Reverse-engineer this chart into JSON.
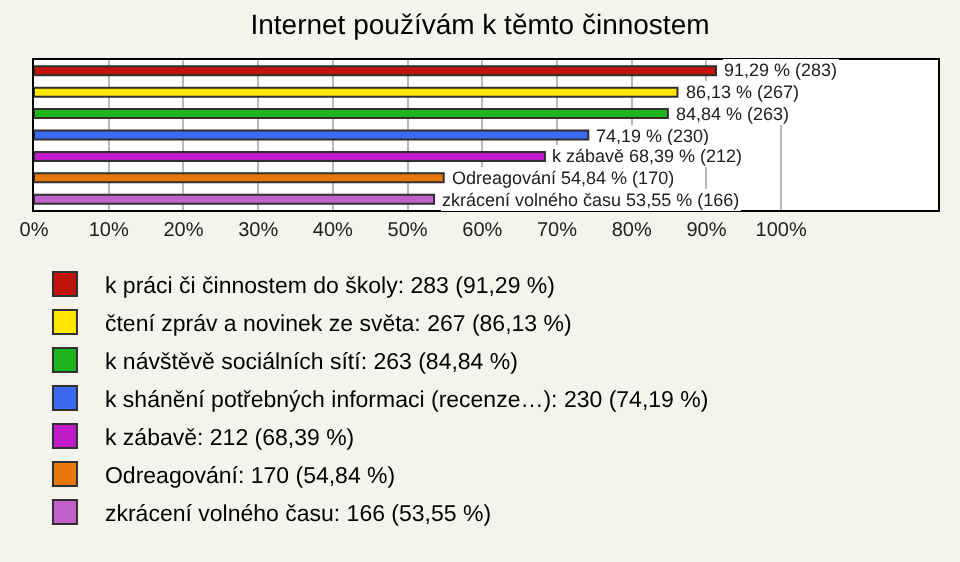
{
  "chart_data": {
    "type": "bar",
    "orientation": "horizontal",
    "title": "Internet používám k těmto činnostem",
    "categories": [
      null,
      null,
      null,
      null,
      null,
      null,
      null
    ],
    "series": [
      {
        "name": "k práci či činnostem do školy: 283 (91,29 %)",
        "color": "#c0140c",
        "values": [
          91.29,
          null,
          null,
          null,
          null,
          null,
          null
        ],
        "value_labels": [
          "91,29 % (283)",
          null,
          null,
          null,
          null,
          null,
          null
        ]
      },
      {
        "name": "čtení zpráv a novinek ze světa: 267 (86,13 %)",
        "color": "#ffe600",
        "values": [
          null,
          86.13,
          null,
          null,
          null,
          null,
          null
        ],
        "value_labels": [
          null,
          "86,13 % (267)",
          null,
          null,
          null,
          null,
          null
        ]
      },
      {
        "name": "k návštěvě sociálních sítí: 263 (84,84 %)",
        "color": "#1cb51c",
        "values": [
          null,
          null,
          84.84,
          null,
          null,
          null,
          null
        ],
        "value_labels": [
          null,
          null,
          "84,84 % (263)",
          null,
          null,
          null,
          null
        ]
      },
      {
        "name": "k shánění potřebných informaci (recenze…): 230 (74,19 %)",
        "color": "#3a6af0",
        "values": [
          null,
          null,
          null,
          74.19,
          null,
          null,
          null
        ],
        "value_labels": [
          null,
          null,
          null,
          "74,19 % (230)",
          null,
          null,
          null
        ]
      },
      {
        "name": "k zábavě: 212 (68,39 %)",
        "color": "#c01cc9",
        "values": [
          null,
          null,
          null,
          null,
          68.39,
          null,
          null
        ],
        "value_labels": [
          null,
          null,
          null,
          null,
          "k zábavě 68,39 % (212)",
          null,
          null
        ]
      },
      {
        "name": "Odreagování: 170 (54,84 %)",
        "color": "#e8780c",
        "values": [
          null,
          null,
          null,
          null,
          null,
          54.84,
          null
        ],
        "value_labels": [
          null,
          null,
          null,
          null,
          null,
          "Odreagování 54,84 % (170)",
          null
        ]
      },
      {
        "name": "zkrácení volného času: 166 (53,55 %)",
        "color": "#c060c8",
        "values": [
          null,
          null,
          null,
          null,
          null,
          null,
          53.55
        ],
        "value_labels": [
          null,
          null,
          null,
          null,
          null,
          null,
          "zkrácení volného času 53,55 % (166)"
        ]
      }
    ],
    "xlim": [
      0,
      121
    ],
    "xticks": [
      {
        "value": 0,
        "label": "0%"
      },
      {
        "value": 10,
        "label": "10%"
      },
      {
        "value": 20,
        "label": "20%"
      },
      {
        "value": 30,
        "label": "30%"
      },
      {
        "value": 40,
        "label": "40%"
      },
      {
        "value": 50,
        "label": "50%"
      },
      {
        "value": 60,
        "label": "60%"
      },
      {
        "value": 70,
        "label": "70%"
      },
      {
        "value": 80,
        "label": "80%"
      },
      {
        "value": 90,
        "label": "90%"
      },
      {
        "value": 100,
        "label": "100%"
      }
    ],
    "grid": "x",
    "legend": "bottom"
  }
}
